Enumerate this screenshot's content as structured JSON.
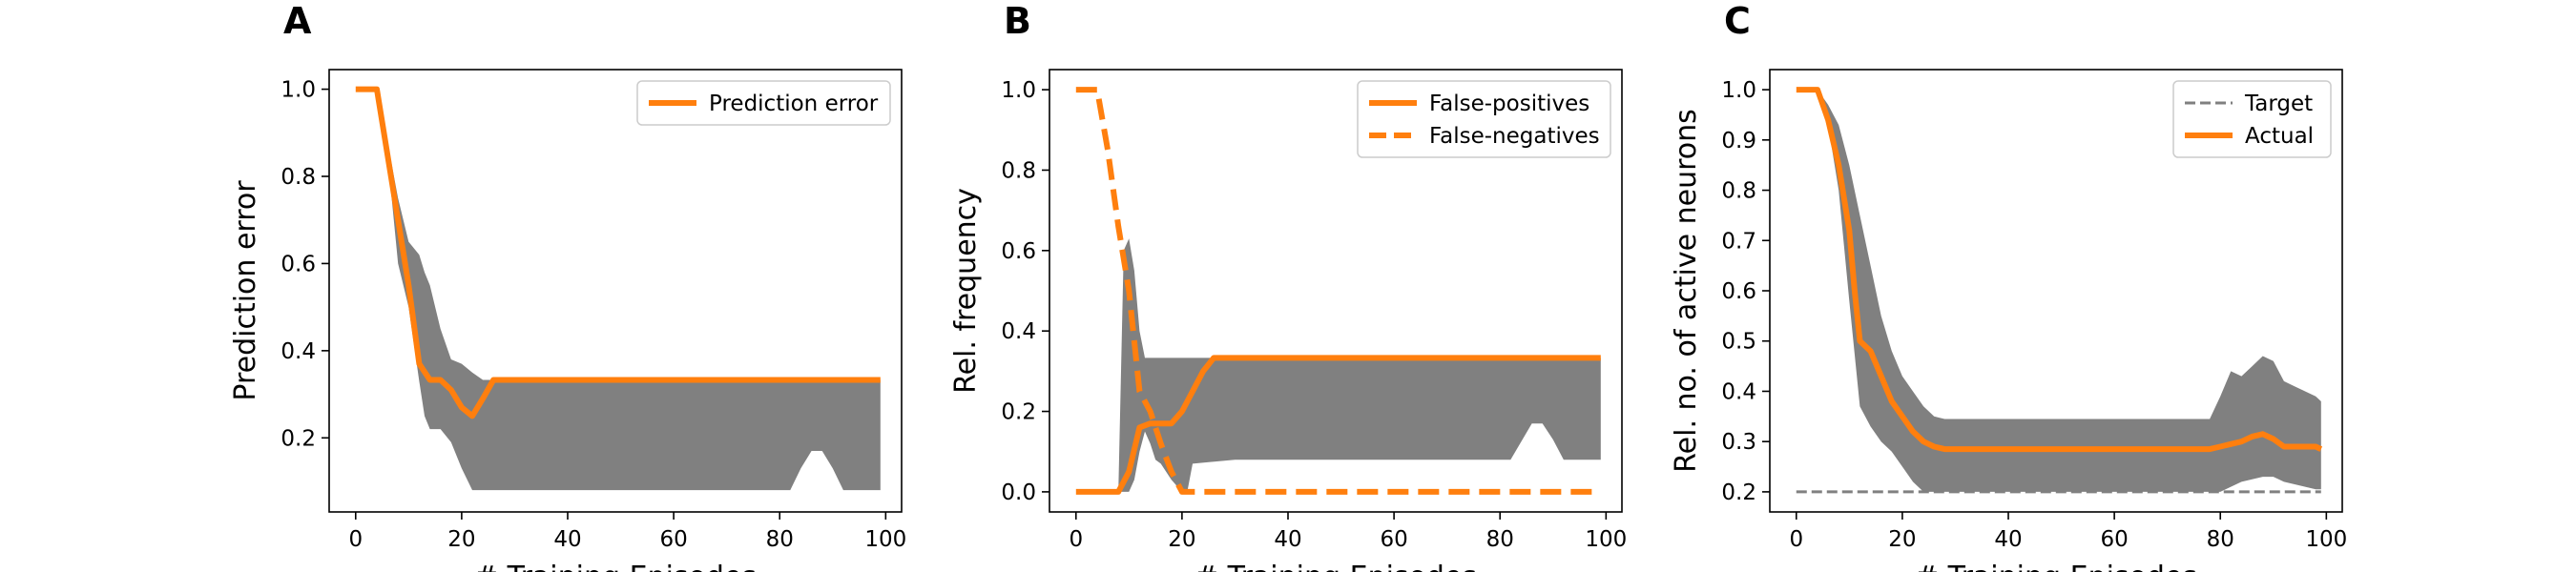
{
  "chart_data": [
    {
      "type": "line",
      "panel_label": "A",
      "title": "",
      "xlabel": "# Training Episodes",
      "ylabel": "Prediction error",
      "xlim": [
        -5,
        103
      ],
      "ylim": [
        0.03,
        1.045
      ],
      "xticks": [
        0,
        20,
        40,
        60,
        80,
        100
      ],
      "yticks": [
        0.2,
        0.4,
        0.6,
        0.8,
        1.0
      ],
      "ytick_labels": [
        "0.2",
        "0.4",
        "0.6",
        "0.8",
        "1.0"
      ],
      "grid": false,
      "legend_position": "top-right",
      "series": [
        {
          "name": "Prediction error",
          "color": "#ff7f0e",
          "dash": "solid",
          "x": [
            0,
            4,
            6,
            8,
            10,
            12,
            14,
            16,
            18,
            20,
            22,
            24,
            26,
            30,
            40,
            50,
            60,
            70,
            80,
            90,
            99
          ],
          "y": [
            1.0,
            1.0,
            0.85,
            0.7,
            0.55,
            0.37,
            0.333,
            0.333,
            0.31,
            0.27,
            0.25,
            0.29,
            0.333,
            0.333,
            0.333,
            0.333,
            0.333,
            0.333,
            0.333,
            0.333,
            0.333
          ]
        }
      ],
      "bands": [
        {
          "color": "#808080",
          "x": [
            0,
            4,
            6,
            8,
            10,
            12,
            13,
            14,
            16,
            18,
            20,
            22,
            24,
            30,
            40,
            50,
            60,
            70,
            80,
            82,
            84,
            86,
            88,
            90,
            92,
            96,
            99
          ],
          "upper": [
            1.0,
            1.0,
            0.88,
            0.75,
            0.65,
            0.62,
            0.58,
            0.55,
            0.45,
            0.38,
            0.37,
            0.35,
            0.333,
            0.333,
            0.333,
            0.333,
            0.333,
            0.333,
            0.333,
            0.333,
            0.333,
            0.333,
            0.333,
            0.333,
            0.333,
            0.333,
            0.333
          ],
          "lower": [
            1.0,
            1.0,
            0.85,
            0.6,
            0.5,
            0.33,
            0.25,
            0.22,
            0.22,
            0.19,
            0.13,
            0.08,
            0.08,
            0.08,
            0.08,
            0.08,
            0.08,
            0.08,
            0.08,
            0.08,
            0.13,
            0.17,
            0.17,
            0.13,
            0.08,
            0.08,
            0.08
          ]
        }
      ],
      "reference_lines": []
    },
    {
      "type": "line",
      "panel_label": "B",
      "title": "",
      "xlabel": "# Training Episodes",
      "ylabel": "Rel. frequency",
      "xlim": [
        -5,
        103
      ],
      "ylim": [
        -0.05,
        1.05
      ],
      "xticks": [
        0,
        20,
        40,
        60,
        80,
        100
      ],
      "yticks": [
        0.0,
        0.2,
        0.4,
        0.6,
        0.8,
        1.0
      ],
      "ytick_labels": [
        "0.0",
        "0.2",
        "0.4",
        "0.6",
        "0.8",
        "1.0"
      ],
      "grid": false,
      "legend_position": "top-right",
      "series": [
        {
          "name": "False-positives",
          "color": "#ff7f0e",
          "dash": "solid",
          "x": [
            0,
            8,
            10,
            12,
            14,
            16,
            18,
            20,
            22,
            24,
            26,
            30,
            40,
            50,
            60,
            70,
            80,
            90,
            99
          ],
          "y": [
            0.0,
            0.0,
            0.05,
            0.16,
            0.17,
            0.17,
            0.17,
            0.2,
            0.25,
            0.3,
            0.333,
            0.333,
            0.333,
            0.333,
            0.333,
            0.333,
            0.333,
            0.333,
            0.333
          ]
        },
        {
          "name": "False-negatives",
          "color": "#ff7f0e",
          "dash": "dashed",
          "x": [
            0,
            4,
            6,
            8,
            10,
            12,
            14,
            16,
            18,
            20,
            22,
            30,
            40,
            50,
            60,
            70,
            80,
            90,
            99
          ],
          "y": [
            1.0,
            1.0,
            0.85,
            0.66,
            0.5,
            0.25,
            0.2,
            0.12,
            0.05,
            0.0,
            0.0,
            0.0,
            0.0,
            0.0,
            0.0,
            0.0,
            0.0,
            0.0,
            0.0
          ]
        }
      ],
      "bands": [
        {
          "color": "#808080",
          "x": [
            0,
            8,
            9,
            10,
            11,
            12,
            13,
            14,
            15,
            16,
            18,
            20,
            21,
            22,
            30,
            40,
            50,
            60,
            70,
            80,
            82,
            86,
            88,
            90,
            92,
            96,
            99
          ],
          "upper": [
            0.0,
            0.0,
            0.6,
            0.63,
            0.55,
            0.4,
            0.333,
            0.333,
            0.333,
            0.333,
            0.333,
            0.333,
            0.333,
            0.333,
            0.333,
            0.333,
            0.333,
            0.333,
            0.333,
            0.333,
            0.333,
            0.333,
            0.333,
            0.333,
            0.333,
            0.333,
            0.333
          ],
          "lower": [
            0.0,
            0.0,
            0.0,
            0.0,
            0.03,
            0.1,
            0.15,
            0.12,
            0.08,
            0.07,
            0.03,
            0.0,
            0.0,
            0.07,
            0.08,
            0.08,
            0.08,
            0.08,
            0.08,
            0.08,
            0.08,
            0.17,
            0.17,
            0.13,
            0.08,
            0.08,
            0.08
          ]
        }
      ],
      "reference_lines": []
    },
    {
      "type": "line",
      "panel_label": "C",
      "title": "",
      "xlabel": "# Training Episodes",
      "ylabel": "Rel. no. of active neurons",
      "xlim": [
        -5,
        103
      ],
      "ylim": [
        0.16,
        1.04
      ],
      "xticks": [
        0,
        20,
        40,
        60,
        80,
        100
      ],
      "yticks": [
        0.2,
        0.3,
        0.4,
        0.5,
        0.6,
        0.7,
        0.8,
        0.9,
        1.0
      ],
      "ytick_labels": [
        "0.2",
        "0.3",
        "0.4",
        "0.5",
        "0.6",
        "0.7",
        "0.8",
        "0.9",
        "1.0"
      ],
      "grid": false,
      "legend_position": "top-right",
      "series": [
        {
          "name": "Actual",
          "color": "#ff7f0e",
          "dash": "solid",
          "x": [
            0,
            4,
            6,
            8,
            10,
            11,
            12,
            14,
            16,
            18,
            20,
            22,
            24,
            26,
            28,
            30,
            40,
            50,
            60,
            70,
            78,
            80,
            82,
            84,
            86,
            88,
            90,
            92,
            94,
            96,
            98,
            99
          ],
          "y": [
            1.0,
            1.0,
            0.94,
            0.85,
            0.72,
            0.6,
            0.5,
            0.48,
            0.43,
            0.38,
            0.35,
            0.32,
            0.3,
            0.29,
            0.285,
            0.285,
            0.285,
            0.285,
            0.285,
            0.285,
            0.285,
            0.29,
            0.295,
            0.3,
            0.31,
            0.315,
            0.305,
            0.29,
            0.29,
            0.29,
            0.29,
            0.285
          ]
        }
      ],
      "bands": [
        {
          "color": "#808080",
          "x": [
            0,
            4,
            6,
            8,
            10,
            12,
            14,
            16,
            18,
            20,
            22,
            24,
            26,
            28,
            30,
            40,
            50,
            60,
            70,
            78,
            80,
            82,
            84,
            86,
            88,
            90,
            92,
            94,
            96,
            98,
            99
          ],
          "upper": [
            1.0,
            1.0,
            0.97,
            0.93,
            0.85,
            0.75,
            0.65,
            0.55,
            0.48,
            0.43,
            0.4,
            0.37,
            0.35,
            0.345,
            0.345,
            0.345,
            0.345,
            0.345,
            0.345,
            0.345,
            0.39,
            0.44,
            0.43,
            0.45,
            0.47,
            0.46,
            0.42,
            0.41,
            0.4,
            0.39,
            0.38
          ],
          "lower": [
            1.0,
            1.0,
            0.93,
            0.8,
            0.58,
            0.37,
            0.33,
            0.3,
            0.28,
            0.25,
            0.22,
            0.2,
            0.2,
            0.2,
            0.2,
            0.2,
            0.2,
            0.2,
            0.2,
            0.2,
            0.2,
            0.21,
            0.22,
            0.225,
            0.23,
            0.23,
            0.22,
            0.215,
            0.21,
            0.205,
            0.205
          ]
        }
      ],
      "reference_lines": [
        {
          "name": "Target",
          "color": "#808080",
          "dash": "dashed",
          "y": 0.2,
          "x": [
            0,
            99
          ]
        }
      ]
    }
  ]
}
